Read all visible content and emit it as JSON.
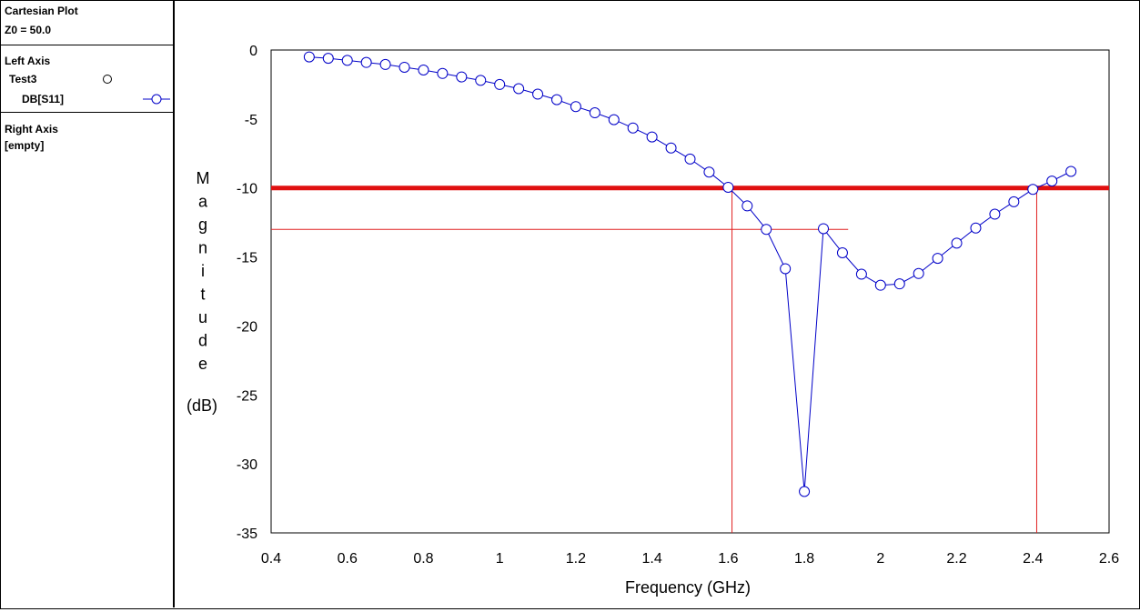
{
  "sidebar": {
    "title": "Cartesian Plot",
    "z0": "Z0 = 50.0",
    "left_axis": {
      "heading": "Left Axis",
      "dataset": "Test3",
      "trace": "DB[S11]"
    },
    "right_axis": {
      "heading": "Right Axis",
      "content": "[empty]"
    }
  },
  "colors": {
    "trace": "#0000c8",
    "marker_fill": "#ffffff",
    "limit_line": "#e01010",
    "guide_line": "#e02020"
  },
  "chart_data": {
    "type": "line",
    "title": "",
    "xlabel": "Frequency (GHz)",
    "ylabel_letters": [
      "M",
      "a",
      "g",
      "n",
      "i",
      "t",
      "u",
      "d",
      "e"
    ],
    "ylabel_unit": "(dB)",
    "xlim": [
      0.4,
      2.6
    ],
    "ylim": [
      -35,
      0
    ],
    "xticks": [
      0.4,
      0.6,
      0.8,
      1,
      1.2,
      1.4,
      1.6,
      1.8,
      2,
      2.2,
      2.4,
      2.6
    ],
    "xtick_labels": [
      "0.4",
      "0.6",
      "0.8",
      "1",
      "1.2",
      "1.4",
      "1.6",
      "1.8",
      "2",
      "2.2",
      "2.4",
      "2.6"
    ],
    "yticks": [
      0,
      -5,
      -10,
      -15,
      -20,
      -25,
      -30,
      -35
    ],
    "ytick_labels": [
      "0",
      "-5",
      "-10",
      "-15",
      "-20",
      "-25",
      "-30",
      "-35"
    ],
    "grid": false,
    "series": [
      {
        "name": "DB[S11]",
        "marker": "open-circle",
        "x": [
          0.5,
          0.55,
          0.6,
          0.65,
          0.7,
          0.75,
          0.8,
          0.85,
          0.9,
          0.95,
          1.0,
          1.05,
          1.1,
          1.15,
          1.2,
          1.25,
          1.3,
          1.35,
          1.4,
          1.45,
          1.5,
          1.55,
          1.6,
          1.65,
          1.7,
          1.75,
          1.8,
          1.85,
          1.9,
          1.95,
          2.0,
          2.05,
          2.1,
          2.15,
          2.2,
          2.25,
          2.3,
          2.35,
          2.4,
          2.45,
          2.5
        ],
        "y": [
          -0.5,
          -0.6,
          -0.75,
          -0.9,
          -1.05,
          -1.25,
          -1.45,
          -1.7,
          -1.95,
          -2.2,
          -2.5,
          -2.8,
          -3.2,
          -3.6,
          -4.1,
          -4.55,
          -5.05,
          -5.65,
          -6.3,
          -7.1,
          -7.9,
          -8.85,
          -9.95,
          -11.3,
          -13.0,
          -15.85,
          -32.0,
          -12.95,
          -14.7,
          -16.25,
          -17.05,
          -16.95,
          -16.2,
          -15.1,
          -14.0,
          -12.9,
          -11.9,
          -11.0,
          -10.1,
          -9.5,
          -8.8
        ]
      }
    ],
    "annotations": {
      "limit_line_y": -10,
      "guide_h": {
        "y": -13,
        "x_from": 0.4,
        "x_to": 1.915
      },
      "guide_v": [
        {
          "x": 1.61,
          "y_from": -35,
          "y_to": -10
        },
        {
          "x": 2.41,
          "y_from": -35,
          "y_to": -10
        }
      ]
    }
  }
}
